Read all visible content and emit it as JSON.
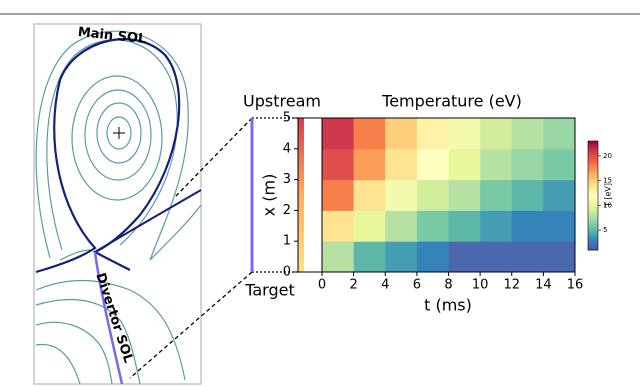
{
  "figure_labels": {
    "main_sol": "Main SOL",
    "divertor_sol": "Divertor SOL",
    "upstream": "Upstream",
    "target": "Target"
  },
  "chart_data": {
    "type": "heatmap",
    "title": "Temperature (eV)",
    "x_label": "t (ms)",
    "y_label": "x (m)",
    "x": [
      1,
      3,
      5,
      7,
      9,
      11,
      13,
      15
    ],
    "y": [
      0.5,
      1.5,
      2.5,
      3.5,
      4.5
    ],
    "values": [
      [
        8,
        5,
        4,
        3,
        2,
        2,
        2,
        2
      ],
      [
        14,
        10,
        8,
        6,
        5,
        4,
        3,
        3
      ],
      [
        18,
        14,
        11,
        9,
        8,
        6,
        5,
        4
      ],
      [
        20,
        17,
        14,
        12,
        10,
        8,
        7,
        6
      ],
      [
        21,
        18,
        15,
        13,
        11,
        9,
        8,
        7
      ]
    ],
    "xlim": [
      0,
      16
    ],
    "ylim": [
      0,
      5
    ],
    "xticks": [
      0,
      2,
      4,
      6,
      8,
      10,
      12,
      14,
      16
    ],
    "yticks": [
      0,
      1,
      2,
      3,
      4,
      5
    ],
    "colorbar": {
      "label": "T [eV]",
      "lim": [
        1,
        23
      ],
      "ticks": [
        5,
        10,
        15,
        20
      ]
    },
    "colormap": [
      "#5e4fa2",
      "#3288bd",
      "#66c2a5",
      "#abdda4",
      "#e6f598",
      "#ffffbf",
      "#fee08b",
      "#fdae61",
      "#f46d43",
      "#d53e4f",
      "#9e0142"
    ]
  }
}
